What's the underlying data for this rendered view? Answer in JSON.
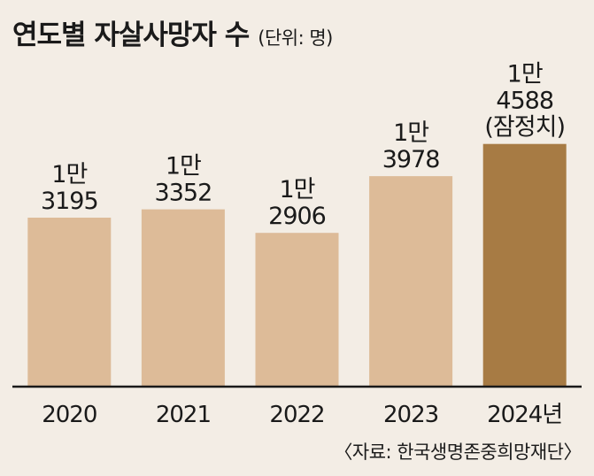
{
  "title": "연도별 자살사망자 수",
  "unit_note": "(단위: 명)",
  "source": "〈자료: 한국생명존중희망재단〉",
  "colors": {
    "bar": "#ddbb98",
    "bar_highlight": "#a77b44",
    "axis": "#1a1a1a",
    "background": "#f3ede5"
  },
  "chart_data": {
    "type": "bar",
    "categories": [
      "2020",
      "2021",
      "2022",
      "2023",
      "2024년"
    ],
    "values": [
      13195,
      13352,
      12906,
      13978,
      14588
    ],
    "data_labels": [
      [
        "1만",
        "3195"
      ],
      [
        "1만",
        "3352"
      ],
      [
        "1만",
        "2906"
      ],
      [
        "1만",
        "3978"
      ],
      [
        "1만",
        "4588",
        "(잠정치)"
      ]
    ],
    "highlight_index": 4,
    "ylim": [
      10000,
      14800
    ],
    "grid": false,
    "legend": "none"
  }
}
